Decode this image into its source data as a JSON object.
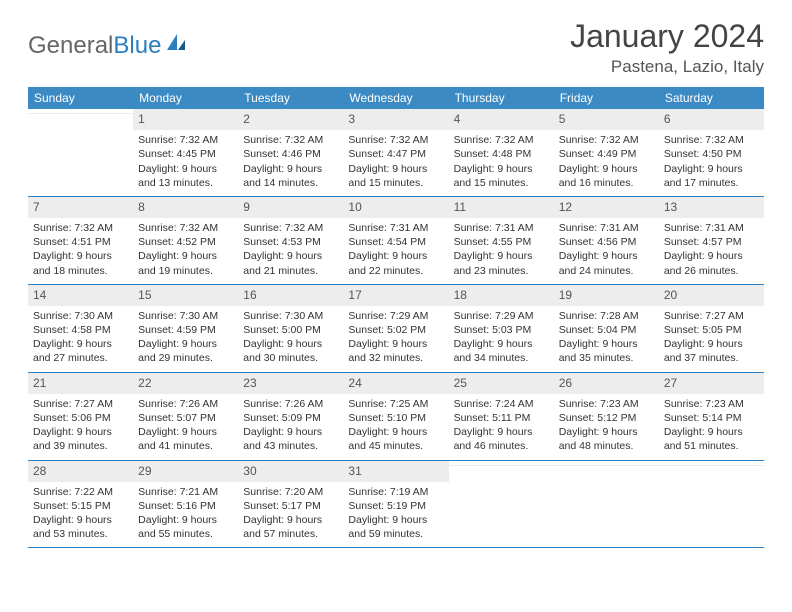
{
  "logo": {
    "textGray": "General",
    "textBlue": "Blue"
  },
  "header": {
    "title": "January 2024",
    "location": "Pastena, Lazio, Italy"
  },
  "colors": {
    "headerBar": "#3b8ac4",
    "dayBg": "#ededed",
    "rule": "#2b7fbf"
  },
  "dayNames": [
    "Sunday",
    "Monday",
    "Tuesday",
    "Wednesday",
    "Thursday",
    "Friday",
    "Saturday"
  ],
  "weeks": [
    [
      {
        "day": "",
        "sunrise": "",
        "sunset": "",
        "daylight": ""
      },
      {
        "day": "1",
        "sunrise": "Sunrise: 7:32 AM",
        "sunset": "Sunset: 4:45 PM",
        "daylight": "Daylight: 9 hours and 13 minutes."
      },
      {
        "day": "2",
        "sunrise": "Sunrise: 7:32 AM",
        "sunset": "Sunset: 4:46 PM",
        "daylight": "Daylight: 9 hours and 14 minutes."
      },
      {
        "day": "3",
        "sunrise": "Sunrise: 7:32 AM",
        "sunset": "Sunset: 4:47 PM",
        "daylight": "Daylight: 9 hours and 15 minutes."
      },
      {
        "day": "4",
        "sunrise": "Sunrise: 7:32 AM",
        "sunset": "Sunset: 4:48 PM",
        "daylight": "Daylight: 9 hours and 15 minutes."
      },
      {
        "day": "5",
        "sunrise": "Sunrise: 7:32 AM",
        "sunset": "Sunset: 4:49 PM",
        "daylight": "Daylight: 9 hours and 16 minutes."
      },
      {
        "day": "6",
        "sunrise": "Sunrise: 7:32 AM",
        "sunset": "Sunset: 4:50 PM",
        "daylight": "Daylight: 9 hours and 17 minutes."
      }
    ],
    [
      {
        "day": "7",
        "sunrise": "Sunrise: 7:32 AM",
        "sunset": "Sunset: 4:51 PM",
        "daylight": "Daylight: 9 hours and 18 minutes."
      },
      {
        "day": "8",
        "sunrise": "Sunrise: 7:32 AM",
        "sunset": "Sunset: 4:52 PM",
        "daylight": "Daylight: 9 hours and 19 minutes."
      },
      {
        "day": "9",
        "sunrise": "Sunrise: 7:32 AM",
        "sunset": "Sunset: 4:53 PM",
        "daylight": "Daylight: 9 hours and 21 minutes."
      },
      {
        "day": "10",
        "sunrise": "Sunrise: 7:31 AM",
        "sunset": "Sunset: 4:54 PM",
        "daylight": "Daylight: 9 hours and 22 minutes."
      },
      {
        "day": "11",
        "sunrise": "Sunrise: 7:31 AM",
        "sunset": "Sunset: 4:55 PM",
        "daylight": "Daylight: 9 hours and 23 minutes."
      },
      {
        "day": "12",
        "sunrise": "Sunrise: 7:31 AM",
        "sunset": "Sunset: 4:56 PM",
        "daylight": "Daylight: 9 hours and 24 minutes."
      },
      {
        "day": "13",
        "sunrise": "Sunrise: 7:31 AM",
        "sunset": "Sunset: 4:57 PM",
        "daylight": "Daylight: 9 hours and 26 minutes."
      }
    ],
    [
      {
        "day": "14",
        "sunrise": "Sunrise: 7:30 AM",
        "sunset": "Sunset: 4:58 PM",
        "daylight": "Daylight: 9 hours and 27 minutes."
      },
      {
        "day": "15",
        "sunrise": "Sunrise: 7:30 AM",
        "sunset": "Sunset: 4:59 PM",
        "daylight": "Daylight: 9 hours and 29 minutes."
      },
      {
        "day": "16",
        "sunrise": "Sunrise: 7:30 AM",
        "sunset": "Sunset: 5:00 PM",
        "daylight": "Daylight: 9 hours and 30 minutes."
      },
      {
        "day": "17",
        "sunrise": "Sunrise: 7:29 AM",
        "sunset": "Sunset: 5:02 PM",
        "daylight": "Daylight: 9 hours and 32 minutes."
      },
      {
        "day": "18",
        "sunrise": "Sunrise: 7:29 AM",
        "sunset": "Sunset: 5:03 PM",
        "daylight": "Daylight: 9 hours and 34 minutes."
      },
      {
        "day": "19",
        "sunrise": "Sunrise: 7:28 AM",
        "sunset": "Sunset: 5:04 PM",
        "daylight": "Daylight: 9 hours and 35 minutes."
      },
      {
        "day": "20",
        "sunrise": "Sunrise: 7:27 AM",
        "sunset": "Sunset: 5:05 PM",
        "daylight": "Daylight: 9 hours and 37 minutes."
      }
    ],
    [
      {
        "day": "21",
        "sunrise": "Sunrise: 7:27 AM",
        "sunset": "Sunset: 5:06 PM",
        "daylight": "Daylight: 9 hours and 39 minutes."
      },
      {
        "day": "22",
        "sunrise": "Sunrise: 7:26 AM",
        "sunset": "Sunset: 5:07 PM",
        "daylight": "Daylight: 9 hours and 41 minutes."
      },
      {
        "day": "23",
        "sunrise": "Sunrise: 7:26 AM",
        "sunset": "Sunset: 5:09 PM",
        "daylight": "Daylight: 9 hours and 43 minutes."
      },
      {
        "day": "24",
        "sunrise": "Sunrise: 7:25 AM",
        "sunset": "Sunset: 5:10 PM",
        "daylight": "Daylight: 9 hours and 45 minutes."
      },
      {
        "day": "25",
        "sunrise": "Sunrise: 7:24 AM",
        "sunset": "Sunset: 5:11 PM",
        "daylight": "Daylight: 9 hours and 46 minutes."
      },
      {
        "day": "26",
        "sunrise": "Sunrise: 7:23 AM",
        "sunset": "Sunset: 5:12 PM",
        "daylight": "Daylight: 9 hours and 48 minutes."
      },
      {
        "day": "27",
        "sunrise": "Sunrise: 7:23 AM",
        "sunset": "Sunset: 5:14 PM",
        "daylight": "Daylight: 9 hours and 51 minutes."
      }
    ],
    [
      {
        "day": "28",
        "sunrise": "Sunrise: 7:22 AM",
        "sunset": "Sunset: 5:15 PM",
        "daylight": "Daylight: 9 hours and 53 minutes."
      },
      {
        "day": "29",
        "sunrise": "Sunrise: 7:21 AM",
        "sunset": "Sunset: 5:16 PM",
        "daylight": "Daylight: 9 hours and 55 minutes."
      },
      {
        "day": "30",
        "sunrise": "Sunrise: 7:20 AM",
        "sunset": "Sunset: 5:17 PM",
        "daylight": "Daylight: 9 hours and 57 minutes."
      },
      {
        "day": "31",
        "sunrise": "Sunrise: 7:19 AM",
        "sunset": "Sunset: 5:19 PM",
        "daylight": "Daylight: 9 hours and 59 minutes."
      },
      {
        "day": "",
        "sunrise": "",
        "sunset": "",
        "daylight": ""
      },
      {
        "day": "",
        "sunrise": "",
        "sunset": "",
        "daylight": ""
      },
      {
        "day": "",
        "sunrise": "",
        "sunset": "",
        "daylight": ""
      }
    ]
  ]
}
